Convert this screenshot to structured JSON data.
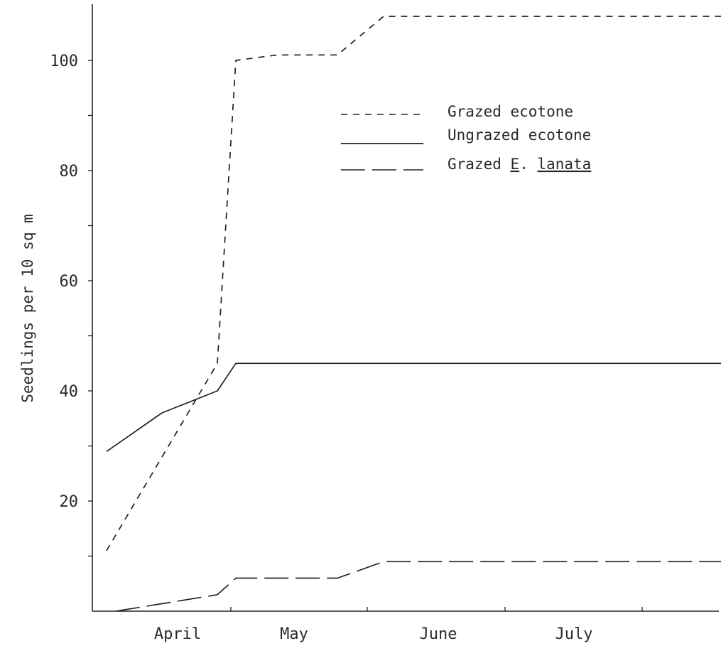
{
  "chart_data": {
    "type": "line",
    "title": "",
    "xlabel": "",
    "ylabel": "Seedlings per 10 sq m",
    "ylim": [
      0,
      110
    ],
    "yticks": [
      20,
      40,
      60,
      80,
      100
    ],
    "xticks": [
      "April",
      "May",
      "June",
      "July"
    ],
    "grid": false,
    "legend_position": "top-right",
    "series": [
      {
        "name": "Grazed ecotone",
        "style": "short-dash",
        "x": [
          0.0,
          1.2,
          1.4,
          1.85,
          2.5,
          3.0,
          7.0
        ],
        "y": [
          11,
          45,
          100,
          101,
          101,
          108,
          108
        ]
      },
      {
        "name": "Ungrazed ecotone",
        "style": "solid",
        "x": [
          0.0,
          0.6,
          1.2,
          1.4,
          7.0
        ],
        "y": [
          29,
          36,
          40,
          45,
          45
        ]
      },
      {
        "name": "Grazed E. lanata",
        "name_parts": [
          "Grazed ",
          "E",
          ". ",
          "lanata"
        ],
        "style": "long-dash",
        "x": [
          0.1,
          1.2,
          1.4,
          1.85,
          2.5,
          3.0,
          7.0
        ],
        "y": [
          0,
          3,
          6,
          6,
          6,
          9,
          9
        ]
      }
    ]
  },
  "colors": {
    "ink": "#222222",
    "text": "#2a2a2a",
    "background": "#ffffff"
  }
}
